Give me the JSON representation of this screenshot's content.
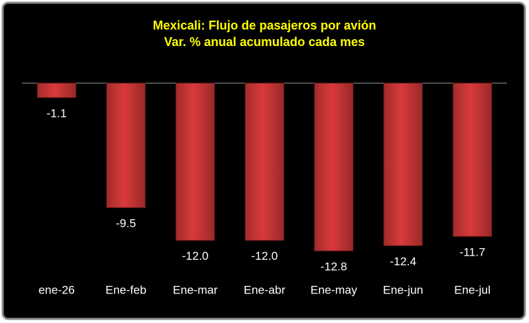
{
  "chart_data": {
    "type": "bar",
    "title": "Mexicali: Flujo de pasajeros por avión",
    "subtitle": "Var. % anual acumulado cada mes",
    "categories": [
      "ene-26",
      "Ene-feb",
      "Ene-mar",
      "Ene-abr",
      "Ene-may",
      "Ene-jun",
      "Ene-jul"
    ],
    "values": [
      -1.1,
      -9.5,
      -12.0,
      -12.0,
      -12.8,
      -12.4,
      -11.7
    ],
    "value_labels": [
      "-1.1",
      "-9.5",
      "-12.0",
      "-12.0",
      "-12.8",
      "-12.4",
      "-11.7"
    ],
    "color": "#d93a3a"
  }
}
